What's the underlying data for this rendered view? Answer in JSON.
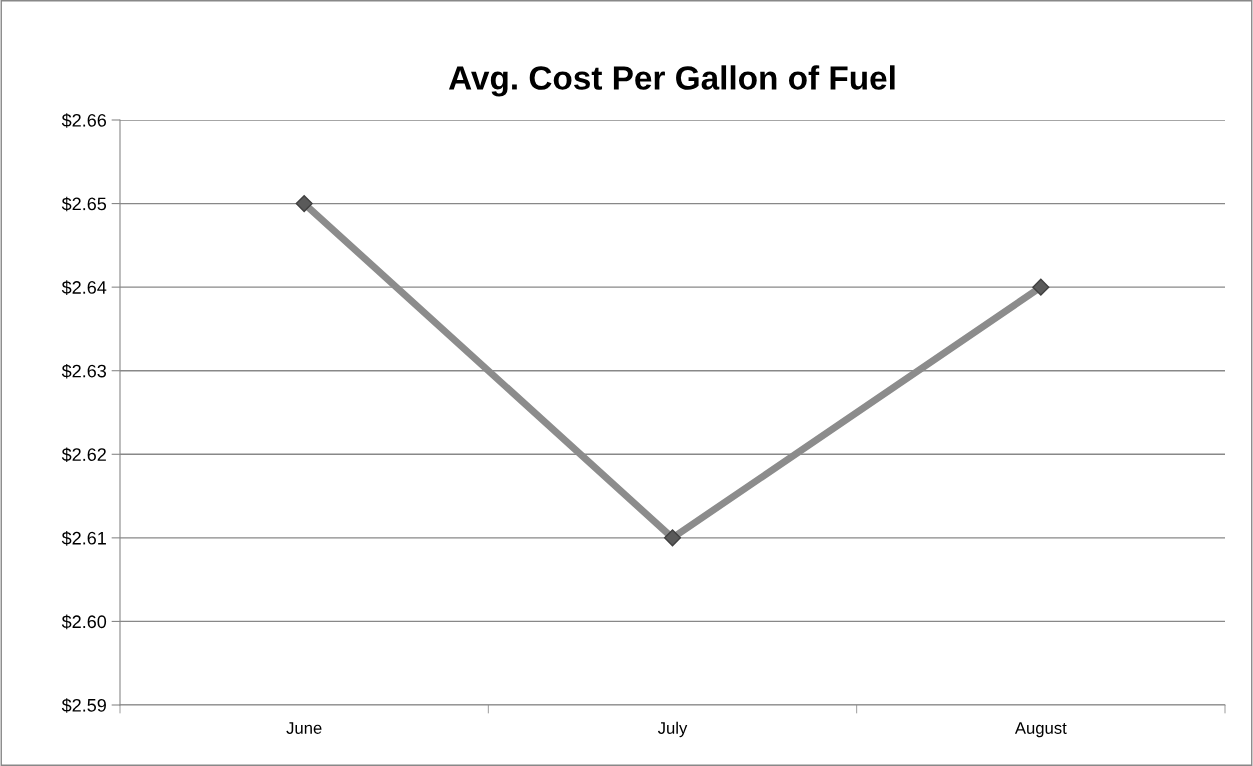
{
  "chart_data": {
    "type": "line",
    "title": "Avg. Cost Per Gallon of Fuel",
    "categories": [
      "June",
      "July",
      "August"
    ],
    "series": [
      {
        "color": "#8c8c8c",
        "values": [
          2.65,
          2.61,
          2.64
        ]
      }
    ],
    "ylim": [
      2.59,
      2.66
    ],
    "yticks": [
      {
        "value": 2.59,
        "label": "$2.59"
      },
      {
        "value": 2.6,
        "label": "$2.60"
      },
      {
        "value": 2.61,
        "label": "$2.61"
      },
      {
        "value": 2.62,
        "label": "$2.62"
      },
      {
        "value": 2.63,
        "label": "$2.63"
      },
      {
        "value": 2.64,
        "label": "$2.64"
      },
      {
        "value": 2.65,
        "label": "$2.65"
      },
      {
        "value": 2.66,
        "label": "$2.66"
      }
    ],
    "grid": "y",
    "marker": "diamond",
    "line_style": "solid",
    "legend": false
  }
}
